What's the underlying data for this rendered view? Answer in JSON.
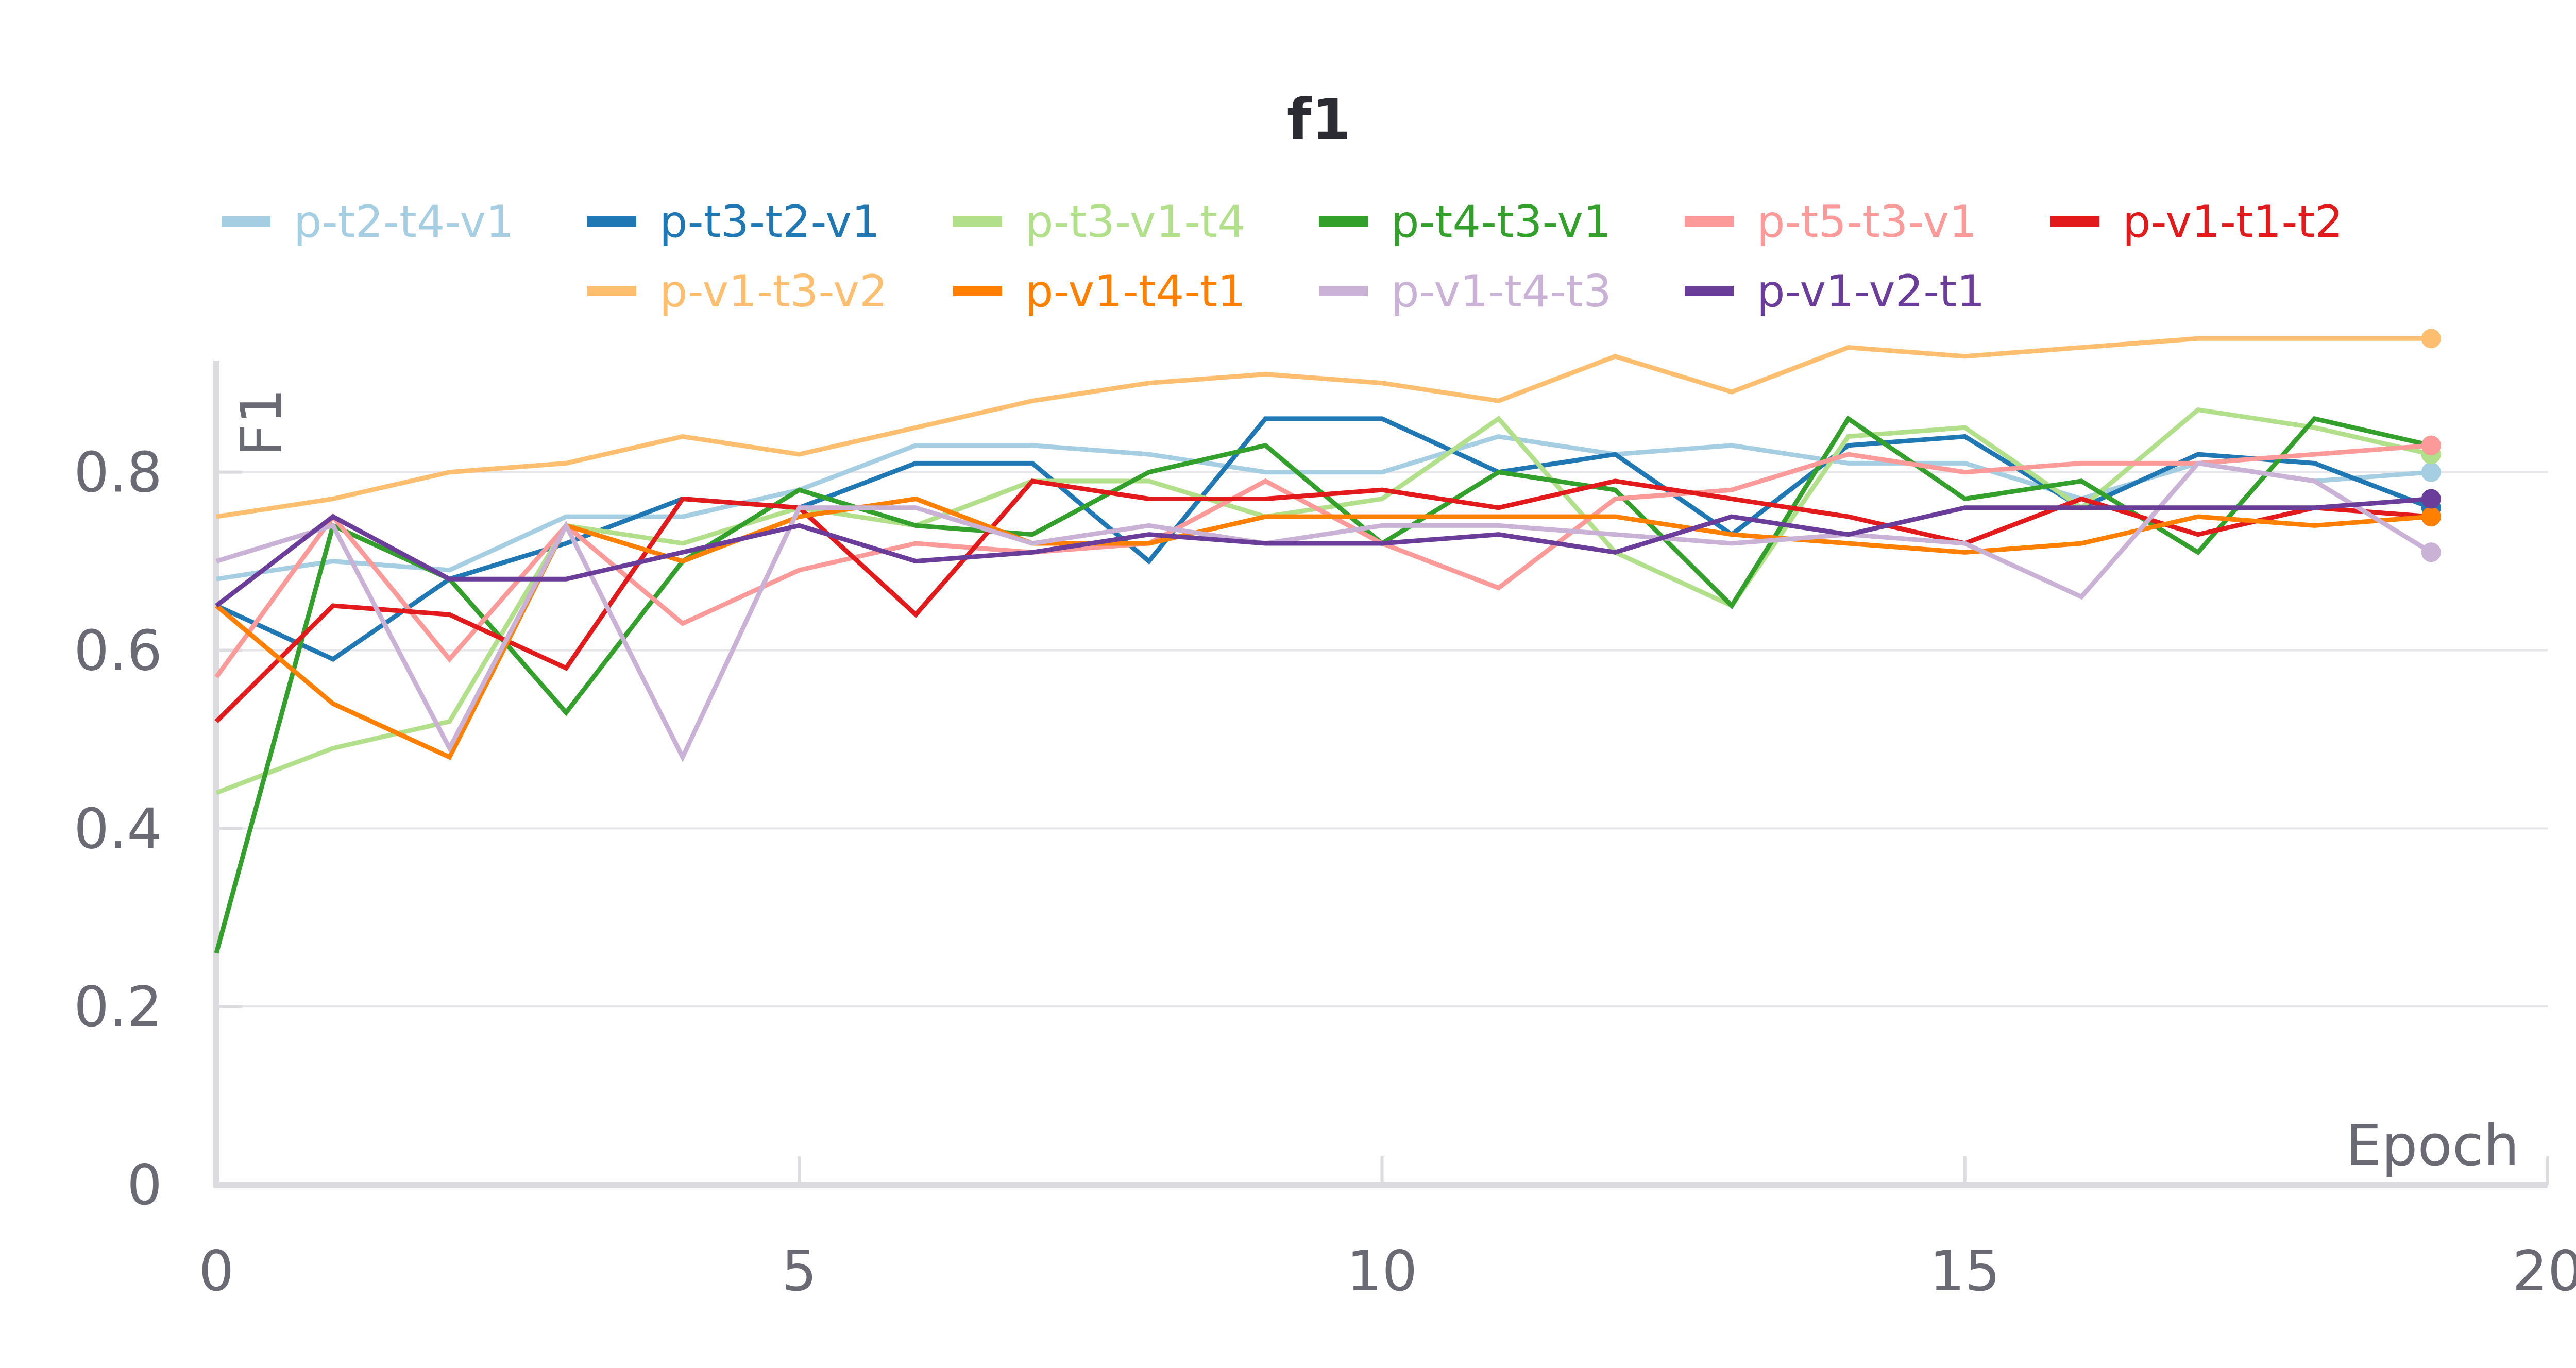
{
  "chart_data": {
    "type": "line",
    "title": "f1",
    "xlabel": "Epoch",
    "ylabel": "F1",
    "xlim": [
      0,
      20
    ],
    "ylim": [
      0,
      0.96
    ],
    "x_ticks": [
      "0",
      "5",
      "10",
      "15",
      "20"
    ],
    "y_ticks": [
      "0",
      "0.2",
      "0.4",
      "0.6",
      "0.8"
    ],
    "grid": true,
    "legend_position": "top",
    "x": [
      0,
      1,
      2,
      3,
      4,
      5,
      6,
      7,
      8,
      9,
      10,
      11,
      12,
      13,
      14,
      15,
      16,
      17,
      18,
      19
    ],
    "series": [
      {
        "name": "p-t2-t4-v1",
        "color": "#a6cee3",
        "values": [
          0.68,
          0.7,
          0.69,
          0.75,
          0.75,
          0.78,
          0.83,
          0.83,
          0.82,
          0.8,
          0.8,
          0.84,
          0.82,
          0.83,
          0.81,
          0.81,
          0.77,
          0.81,
          0.79,
          0.8
        ]
      },
      {
        "name": "p-t3-t2-v1",
        "color": "#1f78b4",
        "values": [
          0.65,
          0.59,
          0.68,
          0.72,
          0.77,
          0.76,
          0.81,
          0.81,
          0.7,
          0.86,
          0.86,
          0.8,
          0.82,
          0.73,
          0.83,
          0.84,
          0.76,
          0.82,
          0.81,
          0.76
        ]
      },
      {
        "name": "p-t3-v1-t4",
        "color": "#b2df8a",
        "values": [
          0.44,
          0.49,
          0.52,
          0.74,
          0.72,
          0.76,
          0.74,
          0.79,
          0.79,
          0.75,
          0.77,
          0.86,
          0.71,
          0.65,
          0.84,
          0.85,
          0.76,
          0.87,
          0.85,
          0.82
        ]
      },
      {
        "name": "p-t4-t3-v1",
        "color": "#33a02c",
        "values": [
          0.26,
          0.74,
          0.68,
          0.53,
          0.7,
          0.78,
          0.74,
          0.73,
          0.8,
          0.83,
          0.72,
          0.8,
          0.78,
          0.65,
          0.86,
          0.77,
          0.79,
          0.71,
          0.86,
          0.83
        ]
      },
      {
        "name": "p-t5-t3-v1",
        "color": "#fb9a99",
        "values": [
          0.57,
          0.75,
          0.59,
          0.74,
          0.63,
          0.69,
          0.72,
          0.71,
          0.72,
          0.79,
          0.72,
          0.67,
          0.77,
          0.78,
          0.82,
          0.8,
          0.81,
          0.81,
          0.82,
          0.83
        ]
      },
      {
        "name": "p-v1-t1-t2",
        "color": "#e31a1c",
        "values": [
          0.52,
          0.65,
          0.64,
          0.58,
          0.77,
          0.76,
          0.64,
          0.79,
          0.77,
          0.77,
          0.78,
          0.76,
          0.79,
          0.77,
          0.75,
          0.72,
          0.77,
          0.73,
          0.76,
          0.75
        ]
      },
      {
        "name": "p-v1-t3-v2",
        "color": "#fdbf6f",
        "values": [
          0.75,
          0.77,
          0.8,
          0.81,
          0.84,
          0.82,
          0.85,
          0.88,
          0.9,
          0.91,
          0.9,
          0.88,
          0.93,
          0.89,
          0.94,
          0.93,
          0.94,
          0.95,
          0.95,
          0.95
        ]
      },
      {
        "name": "p-v1-t4-t1",
        "color": "#ff7f00",
        "values": [
          0.65,
          0.54,
          0.48,
          0.74,
          0.7,
          0.75,
          0.77,
          0.72,
          0.72,
          0.75,
          0.75,
          0.75,
          0.75,
          0.73,
          0.72,
          0.71,
          0.72,
          0.75,
          0.74,
          0.75
        ]
      },
      {
        "name": "p-v1-t4-t3",
        "color": "#cab2d6",
        "values": [
          0.7,
          0.74,
          0.49,
          0.74,
          0.48,
          0.76,
          0.76,
          0.72,
          0.74,
          0.72,
          0.74,
          0.74,
          0.73,
          0.72,
          0.73,
          0.72,
          0.66,
          0.81,
          0.79,
          0.71
        ]
      },
      {
        "name": "p-v1-v2-t1",
        "color": "#6a3d9a",
        "values": [
          0.65,
          0.75,
          0.68,
          0.68,
          0.71,
          0.74,
          0.7,
          0.71,
          0.73,
          0.72,
          0.72,
          0.73,
          0.71,
          0.75,
          0.73,
          0.76,
          0.76,
          0.76,
          0.76,
          0.77
        ]
      }
    ]
  }
}
